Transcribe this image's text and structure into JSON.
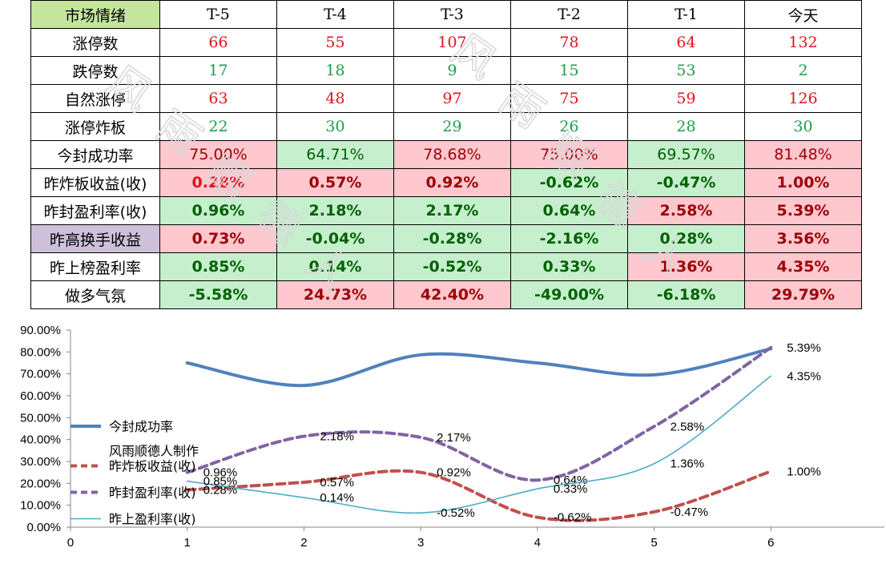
{
  "table": {
    "header_label": "市场情绪",
    "columns": [
      "T-5",
      "T-4",
      "T-3",
      "T-2",
      "T-1",
      "今天"
    ],
    "rows": [
      {
        "label": "涨停数",
        "values": [
          "66",
          "55",
          "107",
          "78",
          "64",
          "132"
        ],
        "color": [
          "#e0141e",
          "#e0141e",
          "#e0141e",
          "#e0141e",
          "#e0141e",
          "#e0141e"
        ],
        "fill": [
          "",
          "",
          "",
          "",
          "",
          ""
        ]
      },
      {
        "label": "跌停数",
        "values": [
          "17",
          "18",
          "9",
          "15",
          "53",
          "2"
        ],
        "color": [
          "#1e9e4a",
          "#1e9e4a",
          "#1e9e4a",
          "#1e9e4a",
          "#1e9e4a",
          "#1e9e4a"
        ],
        "fill": [
          "",
          "",
          "",
          "",
          "",
          ""
        ]
      },
      {
        "label": "自然涨停",
        "values": [
          "63",
          "48",
          "97",
          "75",
          "59",
          "126"
        ],
        "color": [
          "#e0141e",
          "#e0141e",
          "#e0141e",
          "#e0141e",
          "#e0141e",
          "#e0141e"
        ],
        "fill": [
          "",
          "",
          "",
          "",
          "",
          ""
        ]
      },
      {
        "label": "涨停炸板",
        "values": [
          "22",
          "30",
          "29",
          "26",
          "28",
          "30"
        ],
        "color": [
          "#1e9e4a",
          "#1e9e4a",
          "#1e9e4a",
          "#1e9e4a",
          "#1e9e4a",
          "#1e9e4a"
        ],
        "fill": [
          "",
          "",
          "",
          "",
          "",
          ""
        ]
      },
      {
        "label": "今封成功率",
        "values": [
          "75.00%",
          "64.71%",
          "78.68%",
          "75.00%",
          "69.57%",
          "81.48%"
        ],
        "color": [
          "#9c0006",
          "#006100",
          "#9c0006",
          "#9c0006",
          "#006100",
          "#9c0006"
        ],
        "fill": [
          "#ffc7ce",
          "#c6efce",
          "#ffc7ce",
          "#ffc7ce",
          "#c6efce",
          "#ffc7ce"
        ],
        "bold": false
      },
      {
        "label": "昨炸板收益(收)",
        "values": [
          "0.28%",
          "0.57%",
          "0.92%",
          "-0.62%",
          "-0.47%",
          "1.00%"
        ],
        "color": [
          "#e0141e",
          "#9c0006",
          "#9c0006",
          "#006100",
          "#006100",
          "#9c0006"
        ],
        "fill": [
          "#ffc7ce",
          "#ffc7ce",
          "#ffc7ce",
          "#c6efce",
          "#c6efce",
          "#ffc7ce"
        ],
        "bold": true
      },
      {
        "label": "昨封盈利率(收)",
        "values": [
          "0.96%",
          "2.18%",
          "2.17%",
          "0.64%",
          "2.58%",
          "5.39%"
        ],
        "color": [
          "#006100",
          "#006100",
          "#006100",
          "#006100",
          "#9c0006",
          "#9c0006"
        ],
        "fill": [
          "#c6efce",
          "#c6efce",
          "#c6efce",
          "#c6efce",
          "#ffc7ce",
          "#ffc7ce"
        ],
        "bold": true
      },
      {
        "label": "昨高换手收益",
        "values": [
          "0.73%",
          "-0.04%",
          "-0.28%",
          "-2.16%",
          "0.28%",
          "3.56%"
        ],
        "color": [
          "#9c0006",
          "#006100",
          "#006100",
          "#006100",
          "#006100",
          "#9c0006"
        ],
        "fill": [
          "#ffc7ce",
          "#c6efce",
          "#c6efce",
          "#c6efce",
          "#c6efce",
          "#ffc7ce"
        ],
        "bold": true,
        "label_fill": "#ccc0da"
      },
      {
        "label": "昨上榜盈利率",
        "values": [
          "0.85%",
          "0.14%",
          "-0.52%",
          "0.33%",
          "1.36%",
          "4.35%"
        ],
        "color": [
          "#006100",
          "#006100",
          "#006100",
          "#006100",
          "#9c0006",
          "#9c0006"
        ],
        "fill": [
          "#c6efce",
          "#c6efce",
          "#c6efce",
          "#c6efce",
          "#ffc7ce",
          "#ffc7ce"
        ],
        "bold": true
      },
      {
        "label": "做多气氛",
        "values": [
          "-5.58%",
          "24.73%",
          "42.40%",
          "-49.00%",
          "-6.18%",
          "29.79%"
        ],
        "color": [
          "#006100",
          "#9c0006",
          "#9c0006",
          "#006100",
          "#006100",
          "#9c0006"
        ],
        "fill": [
          "#c6efce",
          "#ffc7ce",
          "#ffc7ce",
          "#c6efce",
          "#c6efce",
          "#ffc7ce"
        ],
        "bold": true
      }
    ],
    "header_fill": "#c4e59e"
  },
  "watermark_text": "风雨顺德人",
  "chart_data": {
    "type": "line",
    "x_ticks": [
      0,
      1,
      2,
      3,
      4,
      5,
      6
    ],
    "xlim": [
      0,
      7
    ],
    "ylim": [
      0,
      90
    ],
    "y_ticks": [
      "0.00%",
      "10.00%",
      "20.00%",
      "30.00%",
      "40.00%",
      "50.00%",
      "60.00%",
      "70.00%",
      "80.00%",
      "90.00%"
    ],
    "legend_position": "left-inside",
    "legend_extra_text": "风雨顺德人制作",
    "series": [
      {
        "name": "今封成功率",
        "x": [
          1,
          2,
          3,
          4,
          5,
          6
        ],
        "y": [
          75.0,
          64.71,
          78.68,
          75.0,
          69.57,
          81.48
        ],
        "color": "#4f81bd",
        "style": "solid-thick",
        "labels": []
      },
      {
        "name": "昨炸板收益(收)",
        "x": [
          1,
          2,
          3,
          4,
          5,
          6
        ],
        "y": [
          17,
          20.5,
          25,
          4.5,
          7,
          25.5
        ],
        "color": "#c0504d",
        "style": "dashed-thick",
        "labels": [
          "0.28%",
          "0.57%",
          "0.92%",
          "-0.62%",
          "-0.47%",
          "1.00%"
        ]
      },
      {
        "name": "昨封盈利率(收)",
        "x": [
          1,
          2,
          3,
          4,
          5,
          6
        ],
        "y": [
          25,
          41.5,
          41,
          21.5,
          46,
          82
        ],
        "color": "#8064a2",
        "style": "dashed-thick",
        "labels": [
          "0.96%",
          "2.18%",
          "2.17%",
          "0.64%",
          "2.58%",
          "5.39%"
        ]
      },
      {
        "name": "昨上盈利率(收)",
        "x": [
          1,
          2,
          3,
          4,
          5,
          6
        ],
        "y": [
          21,
          13.5,
          6.5,
          17.5,
          29,
          69
        ],
        "color": "#4bacc6",
        "style": "solid-thin",
        "labels": [
          "0.85%",
          "0.14%",
          "-0.52%",
          "0.33%",
          "1.36%",
          "4.35%"
        ]
      }
    ]
  }
}
